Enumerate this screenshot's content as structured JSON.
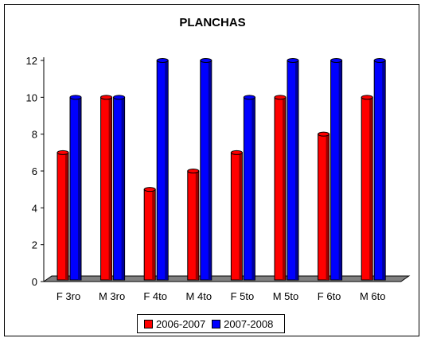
{
  "chart_data": {
    "type": "bar",
    "title": "PLANCHAS",
    "categories": [
      "F 3ro",
      "M 3ro",
      "F 4to",
      "M 4to",
      "F 5to",
      "M 5to",
      "F 6to",
      "M 6to"
    ],
    "series": [
      {
        "name": "2006-2007",
        "color": "#ff0000",
        "values": [
          7,
          10,
          5,
          6,
          7,
          10,
          8,
          10
        ]
      },
      {
        "name": "2007-2008",
        "color": "#0000ff",
        "values": [
          10,
          10,
          12,
          12,
          10,
          12,
          12,
          12
        ]
      }
    ],
    "ylim": [
      0,
      12
    ],
    "yticks": [
      "0",
      "2",
      "4",
      "6",
      "8",
      "10",
      "12"
    ],
    "xlabel": "",
    "ylabel": "",
    "legend_position": "bottom",
    "grid": false,
    "floor_color": "#808080"
  }
}
